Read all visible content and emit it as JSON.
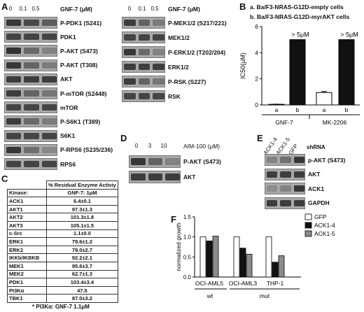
{
  "panelA": {
    "letter": "A",
    "unit": "GNF-7 (μM)",
    "doses": [
      "0",
      "0.1",
      "0.5"
    ],
    "left_blots": [
      {
        "label": "P-PDK1 (S241)",
        "intensity": [
          0.9,
          0.75,
          0.6
        ]
      },
      {
        "label": "PDK1",
        "intensity": [
          0.8,
          0.8,
          0.8
        ]
      },
      {
        "label": "P-AKT (S473)",
        "intensity": [
          0.95,
          0.5,
          0.3
        ]
      },
      {
        "label": "P-AKT (T308)",
        "intensity": [
          0.9,
          0.55,
          0.35
        ]
      },
      {
        "label": "AKT",
        "intensity": [
          0.85,
          0.85,
          0.85
        ]
      },
      {
        "label": "P-mTOR (S2448)",
        "intensity": [
          0.85,
          0.55,
          0.4
        ]
      },
      {
        "label": "mTOR",
        "intensity": [
          0.8,
          0.8,
          0.8
        ]
      },
      {
        "label": "P-S6K1 (T389)",
        "intensity": [
          0.85,
          0.5,
          0.35
        ]
      },
      {
        "label": "S6K1",
        "intensity": [
          0.8,
          0.8,
          0.8
        ]
      },
      {
        "label": "P-RPS6 (S235/236)",
        "intensity": [
          0.9,
          0.45,
          0.25
        ]
      },
      {
        "label": "RPS6",
        "intensity": [
          0.8,
          0.8,
          0.8
        ]
      }
    ],
    "right_blots": [
      {
        "label": "P-MEK1/2 (S217/221)",
        "intensity": [
          0.85,
          0.55,
          0.35
        ]
      },
      {
        "label": "MEK1/2",
        "intensity": [
          0.8,
          0.8,
          0.8
        ]
      },
      {
        "label": "P-ERK1/2 (T202/204)",
        "intensity": [
          0.9,
          0.5,
          0.3
        ]
      },
      {
        "label": "ERK1/2",
        "intensity": [
          0.85,
          0.85,
          0.85
        ]
      },
      {
        "label": "P-RSK (S227)",
        "intensity": [
          0.85,
          0.55,
          0.4
        ]
      },
      {
        "label": "RSK",
        "intensity": [
          0.8,
          0.8,
          0.8
        ]
      }
    ]
  },
  "panelB": {
    "letter": "B",
    "legend_a": "a. Ba/F3-NRAS-G12D-empty cells",
    "legend_b": "b. Ba/F3-NRAS-G12D-myrAKT cells",
    "ylabel": "IC50(μM)",
    "bar_annotation": "> 5μM"
  },
  "panelC": {
    "letter": "C",
    "header_kinase": "Kinase:",
    "header_activity": "% Residual Enzyme Activiy",
    "header_compound": "GNF-7: 1μM",
    "rows": [
      {
        "kinase": "ACK1",
        "value": "6.4±0.1"
      },
      {
        "kinase": "AKT1",
        "value": "97.3±1.3"
      },
      {
        "kinase": "AKT2",
        "value": "101.3±1.8"
      },
      {
        "kinase": "AKT3",
        "value": "105.1±1.5"
      },
      {
        "kinase": "c-Src",
        "value": "1.1±0.0"
      },
      {
        "kinase": "ERK1",
        "value": "79.6±1.2"
      },
      {
        "kinase": "ERK2",
        "value": "79.0±2.7"
      },
      {
        "kinase": "IKKb/IKBKB",
        "value": "92.2±2.1"
      },
      {
        "kinase": "MEK1",
        "value": "95.6±3.7"
      },
      {
        "kinase": "MEK2",
        "value": "62.7±1.3"
      },
      {
        "kinase": "PDK1",
        "value": "103.4±3.4"
      },
      {
        "kinase": "PI3Kα",
        "value": "47.5"
      },
      {
        "kinase": "TBK1",
        "value": "87.0±3.2"
      }
    ],
    "footnote": "* PI3Kα: GNF-7 1.1μM"
  },
  "panelD": {
    "letter": "D",
    "unit": "AIM-100 (μM)",
    "doses": [
      "0",
      "3",
      "10"
    ],
    "blots": [
      {
        "label": "P-AKT (S473)",
        "intensity": [
          0.9,
          0.55,
          0.3
        ]
      },
      {
        "label": "AKT",
        "intensity": [
          0.85,
          0.85,
          0.85
        ]
      }
    ]
  },
  "panelE": {
    "letter": "E",
    "shrna_label": "shRNA",
    "lanes": [
      "ACK1-4",
      "ACK1-5",
      "GFP"
    ],
    "blots": [
      {
        "label": "p-AKT (S473)",
        "intensity": [
          0.3,
          0.45,
          0.9
        ]
      },
      {
        "label": "AKT",
        "intensity": [
          0.85,
          0.85,
          0.85
        ]
      },
      {
        "label": "ACK1",
        "intensity": [
          0.2,
          0.3,
          0.9
        ]
      },
      {
        "label": "GAPDH",
        "intensity": [
          0.85,
          0.85,
          0.85
        ]
      }
    ]
  },
  "panelF": {
    "letter": "F"
  },
  "colors": {
    "black_bar": "#111111",
    "white_bar": "#ffffff",
    "grey_bar": "#8c8c8c",
    "blot_bg": "#a8a8a8",
    "band": "#2a2a2a"
  },
  "chart_data": [
    {
      "type": "bar",
      "ylabel": "IC50(μM)",
      "ylim": [
        0,
        6
      ],
      "yticks": [
        0,
        2,
        4,
        6
      ],
      "groups": [
        "GNF-7",
        "MK-2206"
      ],
      "categories": [
        "a",
        "b",
        "a",
        "b"
      ],
      "values": [
        0.05,
        5,
        0.95,
        5
      ],
      "errors": [
        0.01,
        0,
        0.08,
        0
      ],
      "fills": [
        "#111111",
        "#111111",
        "#ffffff",
        "#111111"
      ]
    },
    {
      "type": "bar",
      "ylabel": "normalized growth",
      "ylim": [
        0,
        1.5
      ],
      "yticks": [
        0.0,
        0.5,
        1.0,
        1.5
      ],
      "categories": [
        "OCI-AML5",
        "OCI-AML3",
        "THP-1"
      ],
      "group_labels": [
        {
          "name": "wt",
          "members": [
            "OCI-AML5"
          ]
        },
        {
          "name": "mut",
          "members": [
            "OCI-AML3",
            "THP-1"
          ]
        }
      ],
      "series": [
        {
          "name": "GFP",
          "values": [
            1.0,
            1.0,
            1.0
          ],
          "color": "#ffffff"
        },
        {
          "name": "ACK1-4",
          "values": [
            0.9,
            0.72,
            0.37
          ],
          "color": "#111111"
        },
        {
          "name": "ACK1-5",
          "values": [
            1.02,
            0.57,
            0.53
          ],
          "color": "#8c8c8c"
        }
      ]
    }
  ]
}
